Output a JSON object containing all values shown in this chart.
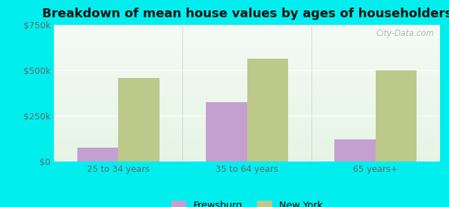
{
  "title": "Breakdown of mean house values by ages of householders",
  "categories": [
    "25 to 34 years",
    "35 to 64 years",
    "65 years+"
  ],
  "frewsburg": [
    75000,
    325000,
    120000
  ],
  "new_york": [
    460000,
    565000,
    500000
  ],
  "frewsburg_color": "#c4a0d0",
  "new_york_color": "#bcc98a",
  "background_color": "#00eeee",
  "ylim": [
    0,
    750000
  ],
  "yticks": [
    0,
    250000,
    500000,
    750000
  ],
  "legend_labels": [
    "Frewsburg",
    "New York"
  ],
  "bar_width": 0.32,
  "title_fontsize": 13
}
